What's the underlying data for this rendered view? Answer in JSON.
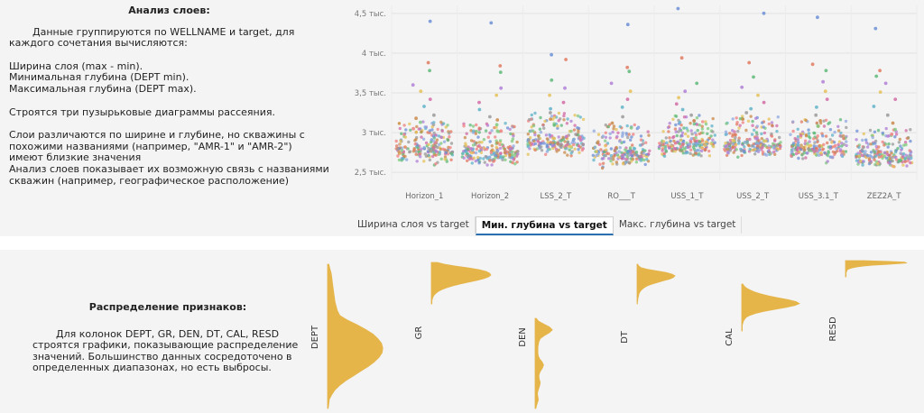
{
  "layers_section": {
    "title": "Анализ слоев:",
    "intro": "Данные группируются по WELLNAME и target, для каждого сочетания вычисляются:",
    "metrics": [
      "Ширина слоя (max - min).",
      "Минимальная глубина (DEPT min).",
      "Максимальная глубина (DEPT max)."
    ],
    "plots_note": "Строятся три пузырьковые диаграммы рассеяния.",
    "observation": "Слои различаются по ширине и глубине, но скважины с похожими названиями (например, \"AMR-1\" и \"AMR-2\") имеют близкие значения",
    "conclusion": "Анализ слоев показывает их возможную связь с названиями скважин (например, географическое расположение)"
  },
  "tabs": [
    {
      "label": "Ширина слоя vs target",
      "active": false
    },
    {
      "label": "Мин. глубина vs target",
      "active": true
    },
    {
      "label": "Макс. глубина vs target",
      "active": false
    }
  ],
  "distribution_section": {
    "title": "Распределение признаков:",
    "text": "Для колонок DEPT, GR, DEN, DT, CAL, RESD строятся графики, показывающие распределение значений. Большинство данных сосредоточено в определенных диапазонах, но есть выбросы."
  },
  "chart_data": [
    {
      "type": "scatter",
      "title": "",
      "xlabel": "",
      "ylabel": "",
      "categories": [
        "Horizon_1",
        "Horizon_2",
        "LSS_2_T",
        "RO___T",
        "USS_1_T",
        "USS_2_T",
        "USS_3.1_T",
        "ZEZ2A_T"
      ],
      "ylim": [
        2400,
        4600
      ],
      "yticks": [
        2500,
        3000,
        3500,
        4000,
        4500
      ],
      "ytick_labels": [
        "2,5 тыс.",
        "3 тыс.",
        "3,5 тыс.",
        "4 тыс.",
        "4,5 тыс."
      ],
      "grid": true,
      "legend": "none",
      "series": [
        {
          "category": "Horizon_1",
          "median": 2760,
          "outliers": [
            4400,
            3880,
            3780,
            3600,
            3520,
            3420,
            3330,
            3220,
            3180,
            3130,
            3050
          ]
        },
        {
          "category": "Horizon_2",
          "median": 2740,
          "outliers": [
            4380,
            3840,
            3760,
            3560,
            3470,
            3380,
            3290,
            3200,
            3160,
            3100,
            3020
          ]
        },
        {
          "category": "LSS_2_T",
          "median": 2870,
          "outliers": [
            3980,
            3920,
            3660,
            3560,
            3470,
            3380,
            3300,
            3250,
            3170
          ]
        },
        {
          "category": "RO___T",
          "median": 2720,
          "outliers": [
            4360,
            3820,
            3770,
            3620,
            3520,
            3420,
            3320,
            3200,
            3120,
            3060
          ]
        },
        {
          "category": "USS_1_T",
          "median": 2840,
          "outliers": [
            4560,
            3940,
            3620,
            3520,
            3440,
            3360,
            3290,
            3220,
            3150
          ]
        },
        {
          "category": "USS_2_T",
          "median": 2830,
          "outliers": [
            4500,
            3880,
            3700,
            3570,
            3470,
            3380,
            3300,
            3250,
            3170
          ]
        },
        {
          "category": "USS_3.1_T",
          "median": 2790,
          "outliers": [
            4450,
            3860,
            3780,
            3640,
            3520,
            3420,
            3320,
            3220,
            3150,
            3080
          ]
        },
        {
          "category": "ZEZ2A_T",
          "median": 2690,
          "outliers": [
            4310,
            3780,
            3710,
            3620,
            3510,
            3420,
            3330,
            3220,
            3120,
            3040,
            2980
          ]
        }
      ]
    },
    {
      "type": "area",
      "title": "",
      "series": [
        {
          "name": "DEPT",
          "density": [
            0.02,
            0.04,
            0.06,
            0.07,
            0.08,
            0.09,
            0.1,
            0.11,
            0.12,
            0.14,
            0.16,
            0.2,
            0.32,
            0.48,
            0.62,
            0.74,
            0.82,
            0.88,
            0.9,
            0.89,
            0.84,
            0.76,
            0.66,
            0.54,
            0.42,
            0.3,
            0.2,
            0.12,
            0.07,
            0.03,
            0.02,
            0.01
          ]
        },
        {
          "name": "GR",
          "density": [
            0.1,
            0.22,
            0.4,
            0.62,
            0.8,
            0.92,
            0.98,
            1.0,
            0.96,
            0.88,
            0.76,
            0.62,
            0.48,
            0.36,
            0.26,
            0.18,
            0.12,
            0.08,
            0.05,
            0.03,
            0.02,
            0.01,
            0.01,
            0.01
          ]
        },
        {
          "name": "DEN",
          "density": [
            0.05,
            0.15,
            0.38,
            0.62,
            0.74,
            0.6,
            0.38,
            0.22,
            0.16,
            0.14,
            0.12,
            0.12,
            0.12,
            0.14,
            0.2,
            0.3,
            0.36,
            0.32,
            0.24,
            0.18,
            0.16,
            0.18,
            0.22,
            0.2,
            0.16,
            0.12,
            0.1,
            0.12,
            0.14,
            0.1,
            0.06,
            0.03
          ]
        },
        {
          "name": "DT",
          "density": [
            0.02,
            0.04,
            0.1,
            0.26,
            0.5,
            0.76,
            0.92,
            1.0,
            0.96,
            0.86,
            0.7,
            0.54,
            0.4,
            0.28,
            0.2,
            0.14,
            0.1,
            0.07,
            0.05,
            0.04,
            0.03,
            0.02,
            0.02,
            0.01,
            0.01
          ]
        },
        {
          "name": "CAL",
          "density": [
            0.02,
            0.04,
            0.08,
            0.14,
            0.22,
            0.32,
            0.46,
            0.62,
            0.8,
            0.94,
            1.0,
            0.92,
            0.76,
            0.56,
            0.38,
            0.24,
            0.14,
            0.08,
            0.05,
            0.03,
            0.02,
            0.01,
            0.01,
            0.01,
            0.01
          ]
        },
        {
          "name": "RESD",
          "density": [
            0.3,
            0.7,
            0.96,
            1.0,
            0.86,
            0.64,
            0.44,
            0.3,
            0.2,
            0.13,
            0.08,
            0.05,
            0.03,
            0.02,
            0.02,
            0.01,
            0.01,
            0.01,
            0.01,
            0.01,
            0.01,
            0.01
          ]
        }
      ]
    }
  ],
  "colors": {
    "scatter_palette": [
      "#6b8fd6",
      "#e07a5f",
      "#5fb87a",
      "#b07fd6",
      "#e5c158",
      "#d16ba5",
      "#5fb3c9",
      "#9a9a9a",
      "#c98a4a",
      "#7fc97f",
      "#f08080",
      "#8fa8e0"
    ],
    "density_fill": "#e5b54a",
    "tab_active_border": "#2a6fb0"
  }
}
